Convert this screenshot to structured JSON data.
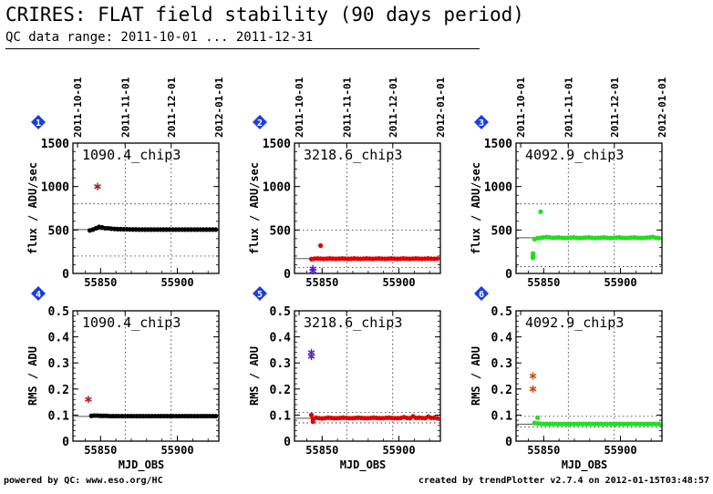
{
  "title": "CRIRES: FLAT field stability (90 days period)",
  "subtitle": "QC data range: 2011-10-01 ... 2011-12-31",
  "footer_left": "powered by QC: www.eso.org/HC",
  "footer_right": "created by trendPlotter v2.7.4 on 2012-01-15T03:48:57",
  "colors": {
    "black": "#000000",
    "red": "#e00000",
    "green": "#22dd22",
    "purple": "#5522cc",
    "darkred": "#b01818",
    "orange": "#c05010",
    "badge": "#1a3fe0"
  },
  "chart_data": [
    {
      "id": 1,
      "panel_label": "1",
      "type": "scatter",
      "label": "1090.4_chip3",
      "color": "#000000",
      "xlabel": "",
      "ylabel": "flux / ADU/sec",
      "xlim": [
        55832,
        55927
      ],
      "ylim": [
        0,
        1500
      ],
      "yticks": [
        0,
        500,
        1000,
        1500
      ],
      "xticks": [
        55850,
        55900
      ],
      "top_ticks": [
        "2011-10-01",
        "2011-11-01",
        "2011-12-01",
        "2012-01-01"
      ],
      "top_tick_x": [
        55835,
        55866,
        55896,
        55927
      ],
      "ref_line": 505,
      "dotted_levels": [
        200,
        800
      ],
      "series": [
        {
          "start": 55843,
          "end": 55925,
          "values": [
            495,
            505,
            520,
            535,
            530,
            520,
            520,
            515,
            512,
            510,
            510,
            508,
            508,
            507,
            506,
            506,
            505,
            505,
            505,
            505,
            505,
            505,
            505,
            505,
            505,
            505,
            505,
            505,
            505,
            505,
            505,
            505,
            505,
            505,
            505,
            505,
            505,
            505,
            505,
            505,
            505,
            505
          ]
        }
      ],
      "outliers": [
        {
          "x": 55848,
          "y": 1000,
          "color": "#b01818"
        }
      ]
    },
    {
      "id": 2,
      "panel_label": "2",
      "type": "scatter",
      "label": "3218.6_chip3",
      "color": "#e00000",
      "xlabel": "",
      "ylabel": "flux / ADU/sec",
      "xlim": [
        55832,
        55927
      ],
      "ylim": [
        0,
        1500
      ],
      "yticks": [
        0,
        500,
        1000,
        1500
      ],
      "xticks": [
        55850,
        55900
      ],
      "top_ticks": [
        "2011-10-01",
        "2011-11-01",
        "2011-12-01",
        "2012-01-01"
      ],
      "top_tick_x": [
        55835,
        55866,
        55896,
        55927
      ],
      "ref_line": 170,
      "dotted_levels": [
        70,
        500
      ],
      "series": [
        {
          "start": 55843,
          "end": 55925,
          "values": [
            165,
            170,
            172,
            170,
            168,
            170,
            172,
            170,
            168,
            170,
            172,
            170,
            168,
            170,
            172,
            170,
            168,
            170,
            172,
            170,
            168,
            170,
            172,
            170,
            168,
            170,
            172,
            170,
            168,
            170,
            172,
            170,
            168,
            170,
            172,
            170,
            168,
            170,
            172,
            170,
            168,
            170
          ]
        }
      ],
      "extra_points": [
        {
          "x": 55849,
          "y": 320
        }
      ],
      "outliers": [
        {
          "x": 55844,
          "y": 30,
          "color": "#5522cc"
        },
        {
          "x": 55844,
          "y": 55,
          "color": "#5522cc"
        }
      ]
    },
    {
      "id": 3,
      "panel_label": "3",
      "type": "scatter",
      "label": "4092.9_chip3",
      "color": "#22dd22",
      "xlabel": "",
      "ylabel": "flux / ADU/sec",
      "xlim": [
        55832,
        55927
      ],
      "ylim": [
        0,
        1500
      ],
      "yticks": [
        0,
        500,
        1000,
        1500
      ],
      "xticks": [
        55850,
        55900
      ],
      "top_ticks": [
        "2011-10-01",
        "2011-11-01",
        "2011-12-01",
        "2012-01-01"
      ],
      "top_tick_x": [
        55835,
        55866,
        55896,
        55927
      ],
      "ref_line": 410,
      "dotted_levels": [
        80,
        800
      ],
      "series": [
        {
          "start": 55844,
          "end": 55925,
          "values": [
            395,
            405,
            410,
            415,
            418,
            415,
            410,
            412,
            414,
            410,
            408,
            410,
            412,
            414,
            410,
            408,
            410,
            412,
            414,
            410,
            408,
            410,
            412,
            414,
            410,
            408,
            410,
            412,
            414,
            410,
            408,
            410,
            412,
            414,
            410,
            408,
            410,
            412,
            414,
            420,
            410,
            408
          ]
        }
      ],
      "extra_points": [
        {
          "x": 55843,
          "y": 230
        },
        {
          "x": 55843,
          "y": 200
        },
        {
          "x": 55843,
          "y": 180
        },
        {
          "x": 55848,
          "y": 710
        }
      ],
      "outliers": []
    },
    {
      "id": 4,
      "panel_label": "4",
      "type": "scatter",
      "label": "1090.4_chip3",
      "color": "#000000",
      "xlabel": "MJD_OBS",
      "ylabel": "RMS / ADU",
      "xlim": [
        55832,
        55927
      ],
      "ylim": [
        0,
        0.5
      ],
      "yticks": [
        0,
        0.1,
        0.2,
        0.3,
        0.4,
        0.5
      ],
      "xticks": [
        55850,
        55900
      ],
      "top_ticks": [],
      "top_tick_x": [
        55835,
        55866,
        55896,
        55927
      ],
      "ref_line": 0.095,
      "dotted_levels": [],
      "series": [
        {
          "start": 55844,
          "end": 55925,
          "values": [
            0.097,
            0.098,
            0.098,
            0.097,
            0.097,
            0.097,
            0.096,
            0.096,
            0.096,
            0.096,
            0.096,
            0.096,
            0.096,
            0.096,
            0.096,
            0.096,
            0.096,
            0.096,
            0.096,
            0.096,
            0.096,
            0.096,
            0.096,
            0.096,
            0.096,
            0.096,
            0.096,
            0.096,
            0.096,
            0.096,
            0.096,
            0.096,
            0.096,
            0.096,
            0.096,
            0.096,
            0.096,
            0.096,
            0.096,
            0.096,
            0.096,
            0.096
          ]
        }
      ],
      "outliers": [
        {
          "x": 55842,
          "y": 0.16,
          "color": "#b01818"
        }
      ]
    },
    {
      "id": 5,
      "panel_label": "5",
      "type": "scatter",
      "label": "3218.6_chip3",
      "color": "#e00000",
      "xlabel": "MJD_OBS",
      "ylabel": "RMS / ADU",
      "xlim": [
        55832,
        55927
      ],
      "ylim": [
        0,
        0.5
      ],
      "yticks": [
        0,
        0.1,
        0.2,
        0.3,
        0.4,
        0.5
      ],
      "xticks": [
        55850,
        55900
      ],
      "top_ticks": [],
      "top_tick_x": [
        55835,
        55866,
        55896,
        55927
      ],
      "ref_line": 0.088,
      "dotted_levels": [
        0.07,
        0.11
      ],
      "series": [
        {
          "start": 55844,
          "end": 55925,
          "values": [
            0.085,
            0.09,
            0.088,
            0.087,
            0.088,
            0.09,
            0.089,
            0.088,
            0.088,
            0.089,
            0.09,
            0.089,
            0.088,
            0.088,
            0.089,
            0.09,
            0.089,
            0.088,
            0.088,
            0.089,
            0.09,
            0.089,
            0.088,
            0.088,
            0.089,
            0.09,
            0.089,
            0.088,
            0.088,
            0.089,
            0.092,
            0.089,
            0.088,
            0.095,
            0.089,
            0.09,
            0.089,
            0.088,
            0.094,
            0.089,
            0.09,
            0.088
          ]
        }
      ],
      "extra_points": [
        {
          "x": 55843,
          "y": 0.1
        },
        {
          "x": 55844,
          "y": 0.075
        }
      ],
      "outliers": [
        {
          "x": 55843,
          "y": 0.34,
          "color": "#5522cc"
        },
        {
          "x": 55843,
          "y": 0.325,
          "color": "#5522cc"
        }
      ]
    },
    {
      "id": 6,
      "panel_label": "6",
      "type": "scatter",
      "label": "4092.9_chip3",
      "color": "#22dd22",
      "xlabel": "MJD_OBS",
      "ylabel": "RMS / ADU",
      "xlim": [
        55832,
        55927
      ],
      "ylim": [
        0,
        0.5
      ],
      "yticks": [
        0,
        0.1,
        0.2,
        0.3,
        0.4,
        0.5
      ],
      "xticks": [
        55850,
        55900
      ],
      "top_ticks": [],
      "top_tick_x": [
        55835,
        55866,
        55896,
        55927
      ],
      "ref_line": 0.065,
      "dotted_levels": [
        0.055,
        0.095
      ],
      "series": [
        {
          "start": 55844,
          "end": 55925,
          "values": [
            0.07,
            0.068,
            0.067,
            0.066,
            0.066,
            0.066,
            0.066,
            0.066,
            0.066,
            0.066,
            0.066,
            0.066,
            0.066,
            0.066,
            0.066,
            0.066,
            0.066,
            0.066,
            0.066,
            0.066,
            0.066,
            0.066,
            0.066,
            0.066,
            0.066,
            0.066,
            0.066,
            0.066,
            0.066,
            0.066,
            0.066,
            0.066,
            0.066,
            0.066,
            0.066,
            0.066,
            0.066,
            0.066,
            0.066,
            0.066,
            0.066,
            0.066
          ]
        }
      ],
      "extra_points": [
        {
          "x": 55846,
          "y": 0.09
        }
      ],
      "outliers": [
        {
          "x": 55843,
          "y": 0.25,
          "color": "#c05010"
        },
        {
          "x": 55843,
          "y": 0.2,
          "color": "#c05010"
        }
      ]
    }
  ]
}
